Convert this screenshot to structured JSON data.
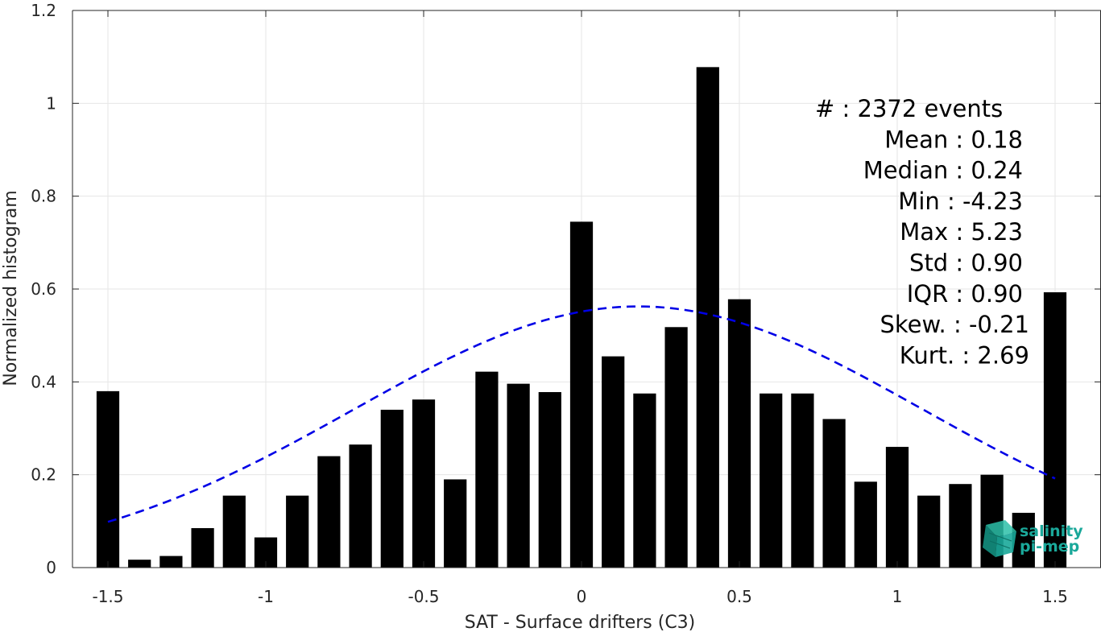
{
  "chart_data": {
    "type": "bar",
    "xlabel": "SAT - Surface drifters (C3)",
    "ylabel": "Normalized histogram",
    "xlim": [
      -1.5,
      1.5
    ],
    "ylim": [
      0,
      1.2
    ],
    "xticks": [
      "-1.5",
      "-1",
      "-0.5",
      "0",
      "0.5",
      "1",
      "1.5"
    ],
    "yticks": [
      "0",
      "0.2",
      "0.4",
      "0.6",
      "0.8",
      "1",
      "1.2"
    ],
    "grid": true,
    "bar_color": "#000000",
    "bins": [
      -1.5,
      -1.4,
      -1.3,
      -1.2,
      -1.1,
      -1.0,
      -0.9,
      -0.8,
      -0.7,
      -0.6,
      -0.5,
      -0.4,
      -0.3,
      -0.2,
      -0.1,
      0.0,
      0.1,
      0.2,
      0.3,
      0.4,
      0.5,
      0.6,
      0.7,
      0.8,
      0.9,
      1.0,
      1.1,
      1.2,
      1.3,
      1.4,
      1.5
    ],
    "values": [
      0.38,
      0.017,
      0.025,
      0.085,
      0.155,
      0.065,
      0.155,
      0.24,
      0.265,
      0.34,
      0.362,
      0.19,
      0.422,
      0.396,
      0.378,
      0.745,
      0.455,
      0.375,
      0.518,
      1.078,
      0.578,
      0.375,
      0.375,
      0.32,
      0.185,
      0.26,
      0.155,
      0.18,
      0.2,
      0.118,
      0.593
    ],
    "fit": {
      "type": "normal",
      "mean": 0.18,
      "std": 0.9,
      "peak": 0.5625,
      "x_range": [
        -1.5,
        1.5
      ],
      "color": "#0000e6",
      "style": "dashed"
    },
    "stats": [
      {
        "label": "#  : 2372 events"
      },
      {
        "label": "Mean : 0.18"
      },
      {
        "label": "Median : 0.24"
      },
      {
        "label": "Min : -4.23"
      },
      {
        "label": "Max : 5.23"
      },
      {
        "label": "Std : 0.90"
      },
      {
        "label": "IQR : 0.90"
      },
      {
        "label": "Skew. : -0.21"
      },
      {
        "label": "Kurt. : 2.69"
      }
    ]
  },
  "logo": {
    "line1": "salinity",
    "line2": "pi-mep",
    "color": "#1aa89a"
  }
}
